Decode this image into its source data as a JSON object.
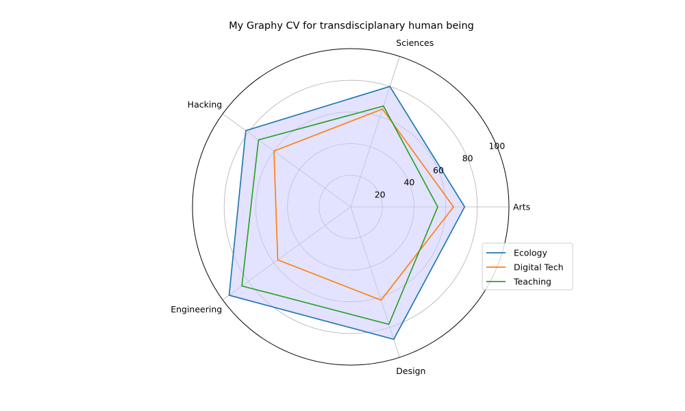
{
  "chart_data": {
    "type": "radar",
    "title": "My Graphy CV for transdisciplanary human being",
    "categories": [
      "Arts",
      "Sciences",
      "Hacking",
      "Engineering",
      "Design"
    ],
    "rlim": [
      0,
      100
    ],
    "rticks": [
      20,
      40,
      60,
      80,
      100
    ],
    "rtick_labels": [
      "20",
      "40",
      "60",
      "80",
      "100"
    ],
    "grid": true,
    "legend_position": "right",
    "series": [
      {
        "name": "Ecology",
        "values": [
          72,
          80,
          82,
          95,
          88
        ],
        "color": "#1f77b4",
        "filled": true,
        "fill_color": "#ccccff"
      },
      {
        "name": "Digital Tech",
        "values": [
          65,
          65,
          60,
          57,
          62
        ],
        "color": "#ff7f0e",
        "filled": false
      },
      {
        "name": "Teaching",
        "values": [
          55,
          67,
          72,
          85,
          78
        ],
        "color": "#2ca02c",
        "filled": false
      }
    ]
  }
}
